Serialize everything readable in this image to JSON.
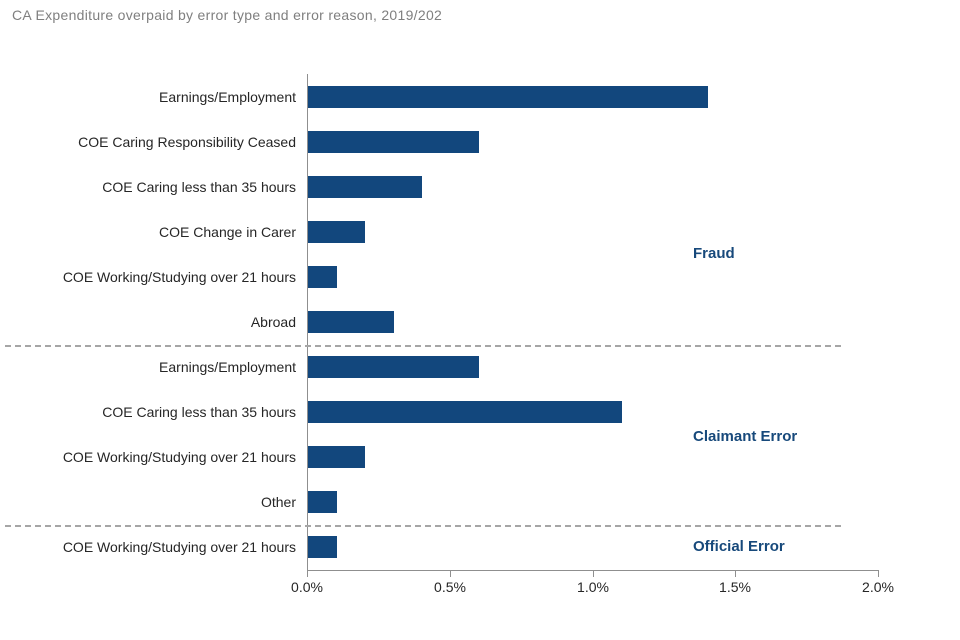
{
  "chart_data": {
    "type": "bar",
    "orientation": "horizontal",
    "title": "CA Expenditure overpaid by error type and error reason, 2019/202",
    "xlabel": "",
    "ylabel": "",
    "xlim": [
      0,
      2.0
    ],
    "x_tick_values": [
      0,
      0.5,
      1.0,
      1.5,
      2.0
    ],
    "x_tick_labels": [
      "0.0%",
      "0.5%",
      "1.0%",
      "1.5%",
      "2.0%"
    ],
    "grid": false,
    "legend": false,
    "groups": [
      {
        "label": "Fraud",
        "items": [
          {
            "category": "Earnings/Employment",
            "value": 1.4
          },
          {
            "category": "COE Caring Responsibility Ceased",
            "value": 0.6
          },
          {
            "category": "COE Caring less than 35 hours",
            "value": 0.4
          },
          {
            "category": "COE Change in Carer",
            "value": 0.2
          },
          {
            "category": "COE Working/Studying over 21 hours",
            "value": 0.1
          },
          {
            "category": "Abroad",
            "value": 0.3
          }
        ]
      },
      {
        "label": "Claimant Error",
        "items": [
          {
            "category": "Earnings/Employment",
            "value": 0.6
          },
          {
            "category": "COE Caring less than 35 hours",
            "value": 1.1
          },
          {
            "category": "COE Working/Studying over 21 hours",
            "value": 0.2
          },
          {
            "category": "Other",
            "value": 0.1
          }
        ]
      },
      {
        "label": "Official Error",
        "items": [
          {
            "category": "COE Working/Studying over 21 hours",
            "value": 0.1
          }
        ]
      }
    ],
    "colors": {
      "bar": "#12477d",
      "section_label": "#17497b",
      "axis": "#8f8f8f",
      "divider": "#a6a6a6",
      "title_text": "#7f7f7f",
      "label_text": "#262626"
    }
  }
}
